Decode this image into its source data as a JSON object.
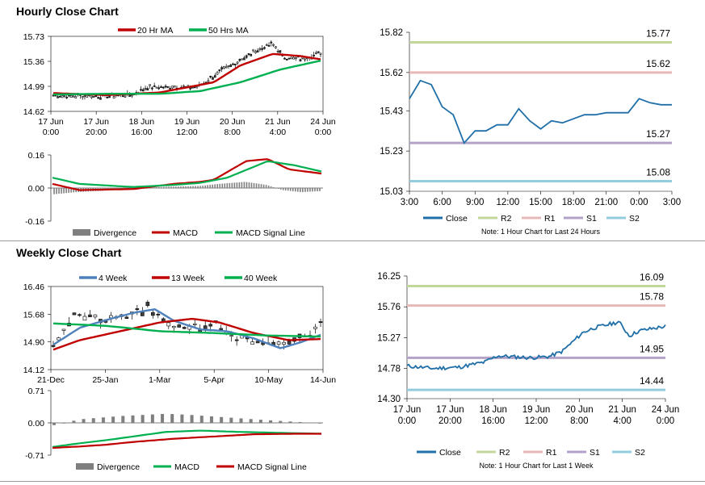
{
  "hourly": {
    "title": "Hourly Close Chart",
    "price": {
      "legend": [
        "20 Hr MA",
        "50 Hrs MA"
      ],
      "yticks": [
        "15.73",
        "15.36",
        "14.99",
        "14.62"
      ],
      "ylim": [
        14.62,
        15.73
      ],
      "xticks": [
        [
          "17 Jun",
          "0:00"
        ],
        [
          "17 Jun",
          "20:00"
        ],
        [
          "18 Jun",
          "16:00"
        ],
        [
          "19 Jun",
          "12:00"
        ],
        [
          "20 Jun",
          "8:00"
        ],
        [
          "21 Jun",
          "4:00"
        ],
        [
          "24 Jun",
          "0:00"
        ]
      ]
    },
    "macd": {
      "yticks": [
        "0.16",
        "0.00",
        "-0.16"
      ],
      "ylim": [
        -0.16,
        0.16
      ],
      "legend": [
        "Divergence",
        "MACD",
        "MACD Signal Line"
      ]
    },
    "pivot": {
      "yticks": [
        "15.82",
        "15.62",
        "15.43",
        "15.23",
        "15.03"
      ],
      "ylim": [
        15.03,
        15.82
      ],
      "xticks": [
        "3:00",
        "6:00",
        "9:00",
        "12:00",
        "15:00",
        "18:00",
        "21:00",
        "0:00",
        "3:00"
      ],
      "levels": [
        {
          "name": "R2",
          "value": 15.77,
          "label": "15.77",
          "color": "#c3d69b"
        },
        {
          "name": "R1",
          "value": 15.62,
          "label": "15.62",
          "color": "#e6b9b8"
        },
        {
          "name": "S1",
          "value": 15.27,
          "label": "15.27",
          "color": "#b3a2c7"
        },
        {
          "name": "S2",
          "value": 15.08,
          "label": "15.08",
          "color": "#93cddd"
        }
      ],
      "close": [
        15.49,
        15.58,
        15.56,
        15.45,
        15.41,
        15.27,
        15.33,
        15.33,
        15.36,
        15.36,
        15.44,
        15.38,
        15.34,
        15.38,
        15.37,
        15.39,
        15.41,
        15.41,
        15.42,
        15.42,
        15.42,
        15.49,
        15.47,
        15.46,
        15.46
      ],
      "legend": [
        "Close",
        "R2",
        "R1",
        "S1",
        "S2"
      ],
      "note": "Note: 1 Hour Chart for Last 24 Hours"
    }
  },
  "weekly": {
    "title": "Weekly Close Chart",
    "price": {
      "legend": [
        "4 Week",
        "13 Week",
        "40 Week"
      ],
      "yticks": [
        "16.46",
        "15.68",
        "14.90",
        "14.12"
      ],
      "ylim": [
        14.12,
        16.46
      ],
      "xticks": [
        "21-Dec",
        "25-Jan",
        "1-Mar",
        "5-Apr",
        "10-May",
        "14-Jun"
      ]
    },
    "macd": {
      "yticks": [
        "0.71",
        "0.00",
        "-0.71"
      ],
      "ylim": [
        -0.71,
        0.71
      ],
      "legend": [
        "Divergence",
        "MACD",
        "MACD Signal Line"
      ]
    },
    "pivot": {
      "yticks": [
        "16.25",
        "15.76",
        "15.27",
        "14.78",
        "14.30"
      ],
      "ylim": [
        14.3,
        16.25
      ],
      "xticks": [
        [
          "17 Jun",
          "0:00"
        ],
        [
          "17 Jun",
          "20:00"
        ],
        [
          "18 Jun",
          "16:00"
        ],
        [
          "19 Jun",
          "12:00"
        ],
        [
          "20 Jun",
          "8:00"
        ],
        [
          "21 Jun",
          "4:00"
        ],
        [
          "24 Jun",
          "0:00"
        ]
      ],
      "levels": [
        {
          "name": "R2",
          "value": 16.09,
          "label": "16.09",
          "color": "#c3d69b"
        },
        {
          "name": "R1",
          "value": 15.78,
          "label": "15.78",
          "color": "#e6b9b8"
        },
        {
          "name": "S1",
          "value": 14.95,
          "label": "14.95",
          "color": "#b3a2c7"
        },
        {
          "name": "S2",
          "value": 14.44,
          "label": "14.44",
          "color": "#93cddd"
        }
      ],
      "legend": [
        "Close",
        "R2",
        "R1",
        "S1",
        "S2"
      ],
      "note": "Note: 1 Hour Chart for Last 1 Week"
    }
  },
  "colors": {
    "red": "#c00000",
    "green": "#00b050",
    "blue": "#4f81bd",
    "close": "#1f6fa8",
    "divergence": "#7f7f7f"
  }
}
